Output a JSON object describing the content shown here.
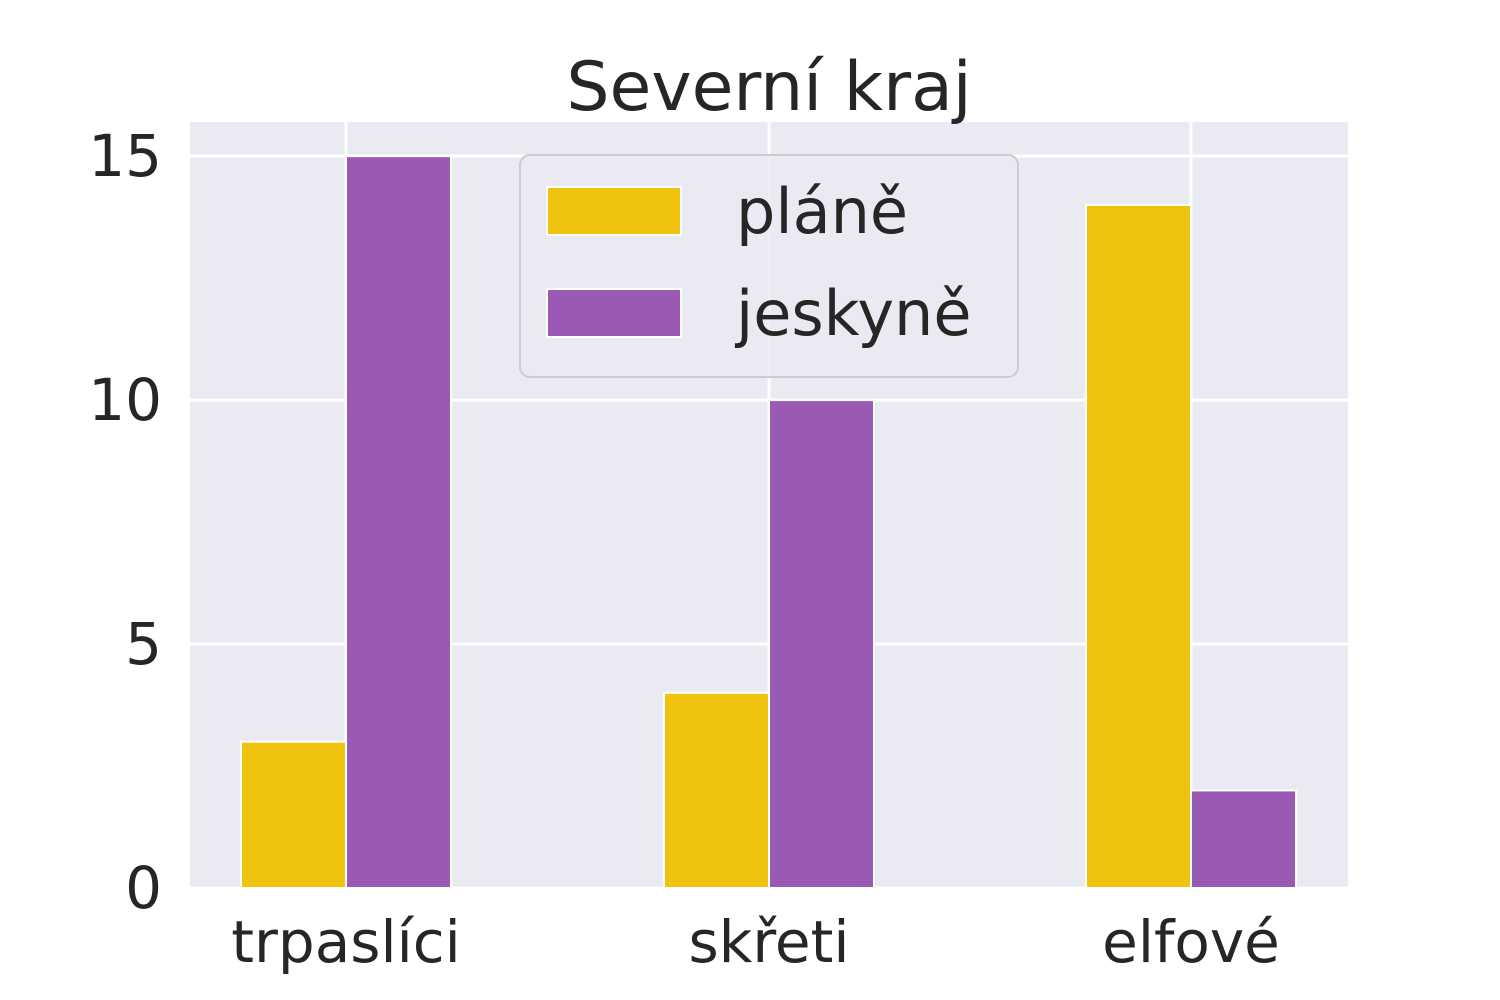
{
  "chart_data": {
    "type": "bar",
    "title": "Severní kraj",
    "xlabel": "",
    "ylabel": "",
    "categories": [
      "trpaslíci",
      "skřeti",
      "elfové"
    ],
    "series": [
      {
        "name": "pláně",
        "values": [
          3,
          4,
          14
        ],
        "color": "#f0c30f"
      },
      {
        "name": "jeskyně",
        "values": [
          15,
          10,
          2
        ],
        "color": "#9b59b6"
      }
    ],
    "ylim": [
      0,
      15.7
    ],
    "yticks": [
      "0",
      "5",
      "10",
      "15"
    ],
    "grid": true,
    "legend_position": "top-center",
    "background": "#eaeaf2"
  }
}
